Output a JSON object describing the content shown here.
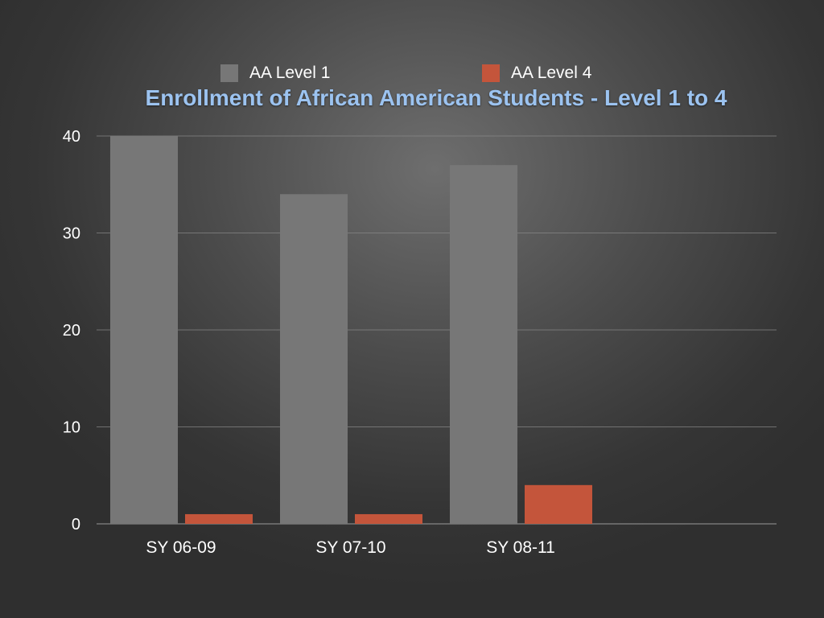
{
  "chart_data": {
    "type": "bar",
    "title": "Enrollment of African American Students - Level 1 to 4",
    "categories": [
      "SY 06-09",
      "SY 07-10",
      "SY 08-11"
    ],
    "series": [
      {
        "name": "AA Level 1",
        "color": "#777777",
        "values": [
          40,
          34,
          37
        ]
      },
      {
        "name": "AA Level 4",
        "color": "#c4553b",
        "values": [
          1,
          1,
          4
        ]
      }
    ],
    "yticks": [
      "0",
      "10",
      "20",
      "30",
      "40"
    ],
    "ylim": [
      0,
      40
    ],
    "xlabel": "",
    "ylabel": "",
    "grid": true,
    "legend_position": "top"
  },
  "colors": {
    "title": "#9cc3f0",
    "grid": "#8a8a8a",
    "text": "#ffffff"
  }
}
